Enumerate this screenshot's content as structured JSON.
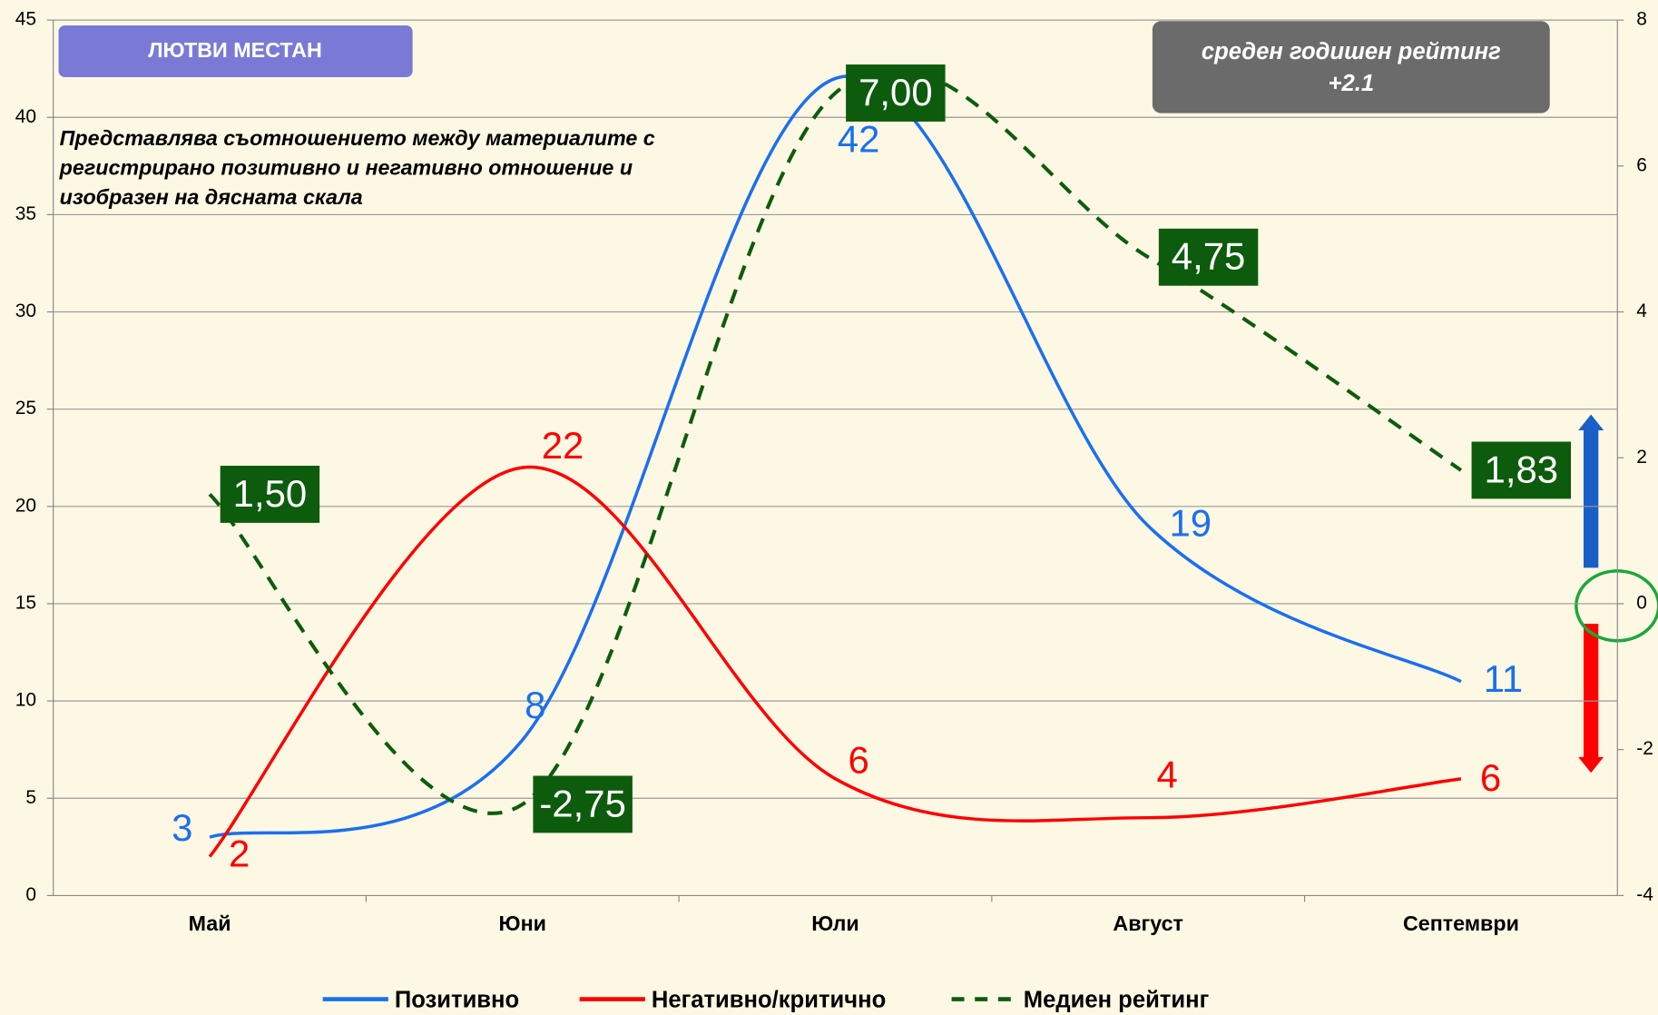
{
  "chart_data": {
    "type": "line",
    "title": "ЛЮТВИ МЕСТАН",
    "annotation": [
      "Представлява съотношението между материалите с",
      "регистрирано позитивно и негативно отношение и",
      "изобразен на дясната скала"
    ],
    "summary": [
      "среден годишен рейтинг",
      "+2.1"
    ],
    "categories": [
      "Май",
      "Юни",
      "Юли",
      "Август",
      "Септември"
    ],
    "series": [
      {
        "name": "Позитивно",
        "color": "#1a6ff0",
        "values": [
          3,
          8,
          42,
          19,
          11
        ]
      },
      {
        "name": "Негативно/критично",
        "color": "#ff0000",
        "values": [
          2,
          22,
          6,
          4,
          6
        ]
      },
      {
        "name": "Медиен рейтинг",
        "color": "#0d5c0d",
        "axis": "y2",
        "dashed": true,
        "values": [
          1.5,
          -2.75,
          7,
          4.75,
          1.83
        ],
        "value_labels": [
          "1,50",
          "-2,75",
          "7,00",
          "4,75",
          "1,83"
        ]
      }
    ],
    "ylim": [
      0,
      45
    ],
    "yticks": [
      0,
      5,
      10,
      15,
      20,
      25,
      30,
      35,
      40,
      45
    ],
    "y2lim": [
      -4,
      8
    ],
    "y2ticks": [
      -4,
      -2,
      0,
      2,
      4,
      6,
      8
    ],
    "grid": true
  }
}
